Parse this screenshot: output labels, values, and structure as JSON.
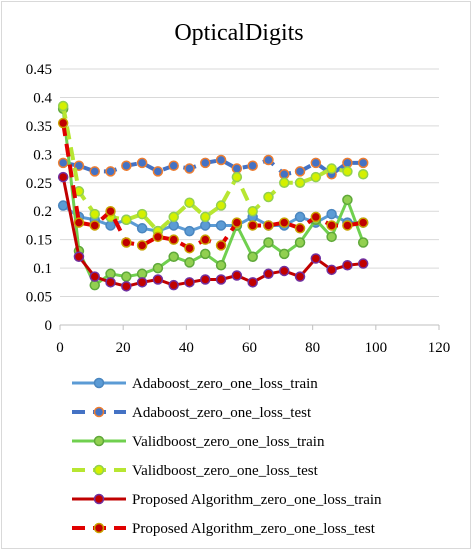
{
  "chart_data": {
    "type": "line",
    "title": "OpticalDigits",
    "xlabel": "",
    "ylabel": "",
    "xlim": [
      0,
      120
    ],
    "ylim": [
      0,
      0.45
    ],
    "xticks": [
      "0",
      "20",
      "40",
      "60",
      "80",
      "100",
      "120"
    ],
    "yticks": [
      "0",
      "0.05",
      "0.1",
      "0.15",
      "0.2",
      "0.25",
      "0.3",
      "0.35",
      "0.4",
      "0.45"
    ],
    "grid": "horizontal",
    "legend_position": "bottom",
    "series": [
      {
        "name": "Adaboost_zero_one_loss_train",
        "color": "#5b9bd5",
        "marker_fill": "#5b9bd5",
        "marker_edge": "#4a86bf",
        "dashed": false,
        "x": [
          1,
          6,
          11,
          16,
          21,
          26,
          31,
          36,
          41,
          46,
          51,
          56,
          61,
          66,
          71,
          76,
          81,
          86,
          91,
          96
        ],
        "y": [
          0.21,
          0.19,
          0.185,
          0.175,
          0.185,
          0.17,
          0.165,
          0.175,
          0.165,
          0.175,
          0.175,
          0.175,
          0.19,
          0.175,
          0.175,
          0.19,
          0.18,
          0.195,
          0.18,
          0.18
        ]
      },
      {
        "name": "Adaboost_zero_one_loss_test",
        "color": "#4472c4",
        "marker_fill": "#4472c4",
        "marker_edge": "#ed7d31",
        "dashed": true,
        "x": [
          1,
          6,
          11,
          16,
          21,
          26,
          31,
          36,
          41,
          46,
          51,
          56,
          61,
          66,
          71,
          76,
          81,
          86,
          91,
          96
        ],
        "y": [
          0.285,
          0.28,
          0.27,
          0.27,
          0.28,
          0.285,
          0.27,
          0.28,
          0.275,
          0.285,
          0.29,
          0.275,
          0.28,
          0.29,
          0.265,
          0.27,
          0.285,
          0.265,
          0.285,
          0.285
        ]
      },
      {
        "name": "Validboost_zero_one_loss_train",
        "color": "#70d04f",
        "marker_fill": "#92d050",
        "marker_edge": "#5fa83a",
        "dashed": false,
        "x": [
          1,
          6,
          11,
          16,
          21,
          26,
          31,
          36,
          41,
          46,
          51,
          56,
          61,
          66,
          71,
          76,
          81,
          86,
          91,
          96
        ],
        "y": [
          0.38,
          0.13,
          0.07,
          0.09,
          0.085,
          0.09,
          0.1,
          0.12,
          0.11,
          0.125,
          0.105,
          0.175,
          0.12,
          0.145,
          0.125,
          0.145,
          0.185,
          0.155,
          0.22,
          0.145
        ]
      },
      {
        "name": "Validboost_zero_one_loss_test",
        "color": "#b7e632",
        "marker_fill": "#d4f000",
        "marker_edge": "#92d050",
        "dashed": true,
        "x": [
          1,
          6,
          11,
          16,
          21,
          26,
          31,
          36,
          41,
          46,
          51,
          56,
          61,
          66,
          71,
          76,
          81,
          86,
          91,
          96
        ],
        "y": [
          0.385,
          0.235,
          0.195,
          0.19,
          0.185,
          0.195,
          0.165,
          0.19,
          0.215,
          0.19,
          0.21,
          0.26,
          0.2,
          0.225,
          0.25,
          0.25,
          0.26,
          0.275,
          0.27,
          0.265
        ]
      },
      {
        "name": "Proposed Algorithm_zero_one_loss_train",
        "color": "#c00000",
        "marker_fill": "#c00000",
        "marker_edge": "#7030a0",
        "dashed": false,
        "x": [
          1,
          6,
          11,
          16,
          21,
          26,
          31,
          36,
          41,
          46,
          51,
          56,
          61,
          66,
          71,
          76,
          81,
          86,
          91,
          96
        ],
        "y": [
          0.26,
          0.12,
          0.085,
          0.075,
          0.068,
          0.075,
          0.08,
          0.07,
          0.075,
          0.08,
          0.08,
          0.087,
          0.075,
          0.09,
          0.095,
          0.085,
          0.117,
          0.097,
          0.105,
          0.108
        ]
      },
      {
        "name": "Proposed Algorithm_zero_one_loss_test",
        "color": "#e00000",
        "marker_fill": "#c00000",
        "marker_edge": "#c9a100",
        "dashed": true,
        "x": [
          1,
          6,
          11,
          16,
          21,
          26,
          31,
          36,
          41,
          46,
          51,
          56,
          61,
          66,
          71,
          76,
          81,
          86,
          91,
          96
        ],
        "y": [
          0.355,
          0.18,
          0.175,
          0.2,
          0.145,
          0.14,
          0.155,
          0.15,
          0.135,
          0.15,
          0.14,
          0.18,
          0.175,
          0.175,
          0.18,
          0.17,
          0.19,
          0.175,
          0.175,
          0.18
        ]
      }
    ]
  }
}
